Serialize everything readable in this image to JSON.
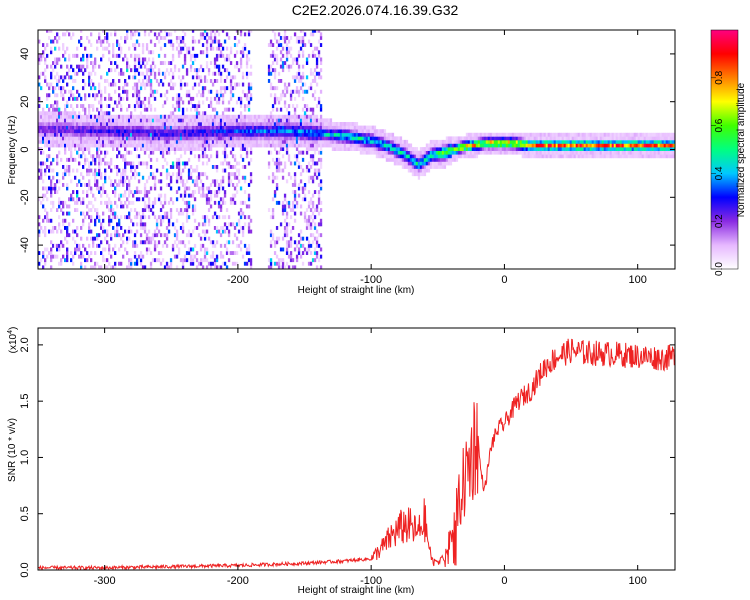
{
  "title": "C2E2.2026.074.16.39.G32",
  "chart_data": [
    {
      "type": "heatmap",
      "title": "",
      "xlabel": "Height of straight line (km)",
      "ylabel": "Frequency (Hz)",
      "xlim": [
        -350,
        128
      ],
      "ylim": [
        -50,
        50
      ],
      "xticks": [
        -300,
        -200,
        -100,
        0,
        100
      ],
      "yticks": [
        -40,
        -20,
        0,
        20,
        40
      ],
      "colorbar": {
        "label": "Normalized spectral amplitude",
        "range": [
          0,
          1
        ],
        "ticks": [
          "0.0",
          "0.2",
          "0.4",
          "0.6",
          "0.8"
        ],
        "colors": [
          "#ffffff",
          "#e6b8ff",
          "#8a2be2",
          "#0000ff",
          "#00c8ff",
          "#00ff80",
          "#40ff00",
          "#ffff00",
          "#ff8000",
          "#ff0000",
          "#ff0080"
        ]
      },
      "ridge": {
        "x": [
          -345,
          -300,
          -250,
          -200,
          -160,
          -140,
          -120,
          -100,
          -85,
          -75,
          -65,
          -55,
          -45,
          -35,
          -25,
          -15,
          -5,
          5,
          20,
          40,
          60,
          80,
          100,
          128
        ],
        "freq": [
          8,
          7,
          6,
          7,
          7,
          6,
          5,
          3,
          0,
          -3,
          -7,
          -3,
          -2,
          0,
          1,
          2,
          2,
          2,
          1,
          1,
          1,
          1,
          1,
          1
        ],
        "peak_amplitude": [
          0.25,
          0.3,
          0.3,
          0.35,
          0.4,
          0.45,
          0.5,
          0.5,
          0.5,
          0.5,
          0.5,
          0.6,
          0.7,
          0.8,
          0.85,
          0.85,
          0.9,
          0.9,
          0.9,
          0.9,
          0.9,
          0.9,
          0.9,
          0.9
        ]
      },
      "noise_region_x": [
        -350,
        -138
      ]
    },
    {
      "type": "line",
      "title": "",
      "xlabel": "Height of straight line (km)",
      "ylabel": "SNR (10 * v/v)",
      "yscale_label": "(x10",
      "yscale_exponent": "4",
      "ylim": [
        0,
        2.15
      ],
      "xlim": [
        -350,
        128
      ],
      "xticks": [
        -300,
        -200,
        -100,
        0,
        100
      ],
      "yticks": [
        "0.0",
        "0.5",
        "1.0",
        "1.5",
        "2.0"
      ],
      "series": [
        {
          "color": "#ee2222",
          "x": [
            -350,
            -300,
            -250,
            -200,
            -150,
            -120,
            -100,
            -90,
            -85,
            -80,
            -75,
            -70,
            -65,
            -60,
            -55,
            -50,
            -45,
            -40,
            -35,
            -30,
            -25,
            -22,
            -20,
            -18,
            -15,
            -10,
            -5,
            0,
            5,
            10,
            15,
            20,
            25,
            30,
            35,
            40,
            50,
            60,
            80,
            100,
            120,
            128
          ],
          "y": [
            0.02,
            0.02,
            0.03,
            0.04,
            0.06,
            0.08,
            0.1,
            0.22,
            0.3,
            0.35,
            0.4,
            0.38,
            0.32,
            0.45,
            0.1,
            0.08,
            0.12,
            0.3,
            0.55,
            0.8,
            1.0,
            1.15,
            1.2,
            0.9,
            0.7,
            1.1,
            1.25,
            1.3,
            1.4,
            1.5,
            1.55,
            1.6,
            1.7,
            1.8,
            1.85,
            1.9,
            1.95,
            1.93,
            1.92,
            1.9,
            1.88,
            1.9
          ]
        }
      ]
    }
  ]
}
